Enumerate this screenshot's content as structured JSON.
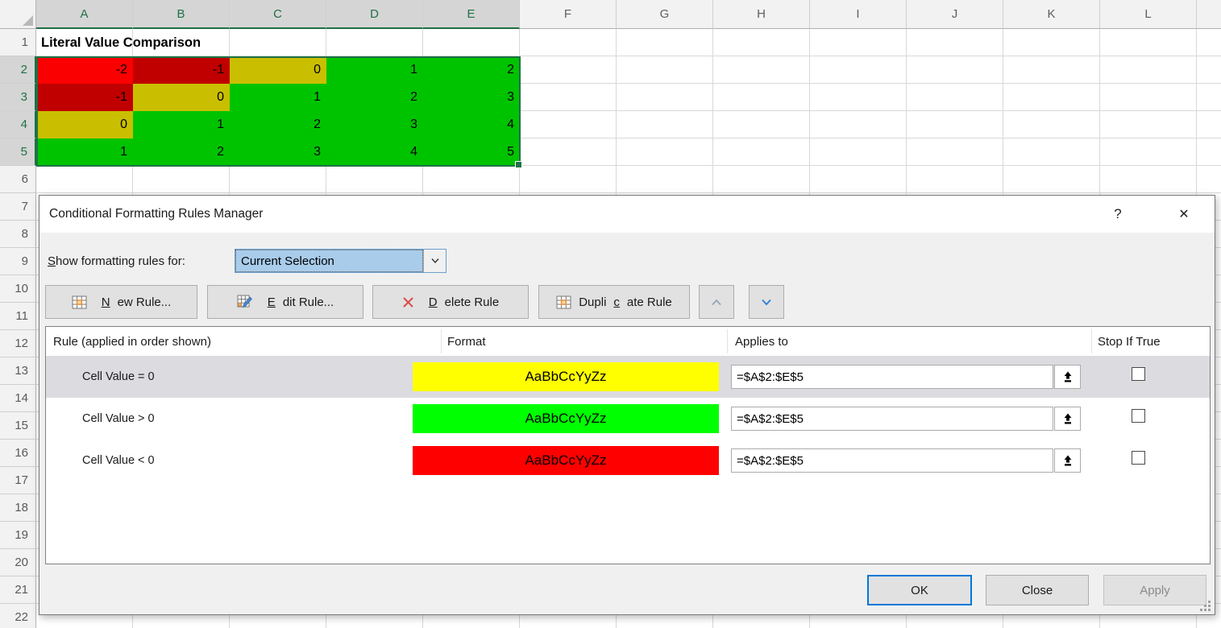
{
  "spreadsheet": {
    "column_headers": [
      "A",
      "B",
      "C",
      "D",
      "E",
      "F",
      "G",
      "H",
      "I",
      "J",
      "K",
      "L"
    ],
    "selected_columns": [
      "A",
      "B",
      "C",
      "D",
      "E"
    ],
    "row_count": 22,
    "selected_rows": [
      2,
      3,
      4,
      5
    ],
    "cell_a1": "Literal Value Comparison",
    "selected_range": "A2:E5",
    "data_rows": [
      {
        "row": 2,
        "values": [
          "-2",
          "-1",
          "0",
          "1",
          "2"
        ],
        "colors": [
          "#fb0000",
          "#c00000",
          "#c9bf00",
          "#00c300",
          "#00c300"
        ]
      },
      {
        "row": 3,
        "values": [
          "-1",
          "0",
          "1",
          "2",
          "3"
        ],
        "colors": [
          "#c00000",
          "#c9bf00",
          "#00c300",
          "#00c300",
          "#00c300"
        ]
      },
      {
        "row": 4,
        "values": [
          "0",
          "1",
          "2",
          "3",
          "4"
        ],
        "colors": [
          "#c9bf00",
          "#00c300",
          "#00c300",
          "#00c300",
          "#00c300"
        ]
      },
      {
        "row": 5,
        "values": [
          "1",
          "2",
          "3",
          "4",
          "5"
        ],
        "colors": [
          "#00c300",
          "#00c300",
          "#00c300",
          "#00c300",
          "#00c300"
        ]
      }
    ]
  },
  "dialog": {
    "title": "Conditional Formatting Rules Manager",
    "help_label": "?",
    "close_label": "✕",
    "show_rules": {
      "pre": "",
      "key": "S",
      "post": "how formatting rules for:",
      "value": "Current Selection"
    },
    "toolbar": {
      "new": {
        "pre": "",
        "key": "N",
        "post": "ew Rule..."
      },
      "edit": {
        "pre": "",
        "key": "E",
        "post": "dit Rule..."
      },
      "delete": {
        "pre": "",
        "key": "D",
        "post": "elete Rule"
      },
      "duplicate": {
        "pre": "Dupli",
        "key": "c",
        "post": "ate Rule"
      }
    },
    "list": {
      "headers": {
        "rule": "Rule (applied in order shown)",
        "format": "Format",
        "applies": "Applies to",
        "stop": "Stop If True"
      },
      "preview_text": "AaBbCcYyZz",
      "rows": [
        {
          "rule": "Cell Value = 0",
          "fill": "#ffff00",
          "applies_to": "=$A$2:$E$5",
          "stop_checked": false,
          "selected": true
        },
        {
          "rule": "Cell Value > 0",
          "fill": "#00ff00",
          "applies_to": "=$A$2:$E$5",
          "stop_checked": false,
          "selected": false
        },
        {
          "rule": "Cell Value < 0",
          "fill": "#ff0000",
          "applies_to": "=$A$2:$E$5",
          "stop_checked": false,
          "selected": false
        }
      ]
    },
    "footer": {
      "ok": "OK",
      "close": "Close",
      "apply": "Apply",
      "apply_enabled": false
    }
  },
  "colors": {
    "accent_blue": "#0078d7",
    "selection_green": "#1e7145",
    "combo_fill": "#a9cceb",
    "gridline": "#d8d8d8"
  }
}
